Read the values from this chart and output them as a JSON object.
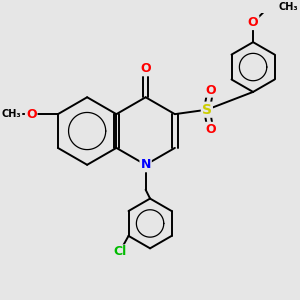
{
  "bg_color": "#e6e6e6",
  "bond_color": "#000000",
  "bond_width": 1.4,
  "atom_colors": {
    "O": "#ff0000",
    "S": "#cccc00",
    "N": "#0000ff",
    "Cl": "#00bb00",
    "C": "#000000"
  },
  "font_size": 8
}
